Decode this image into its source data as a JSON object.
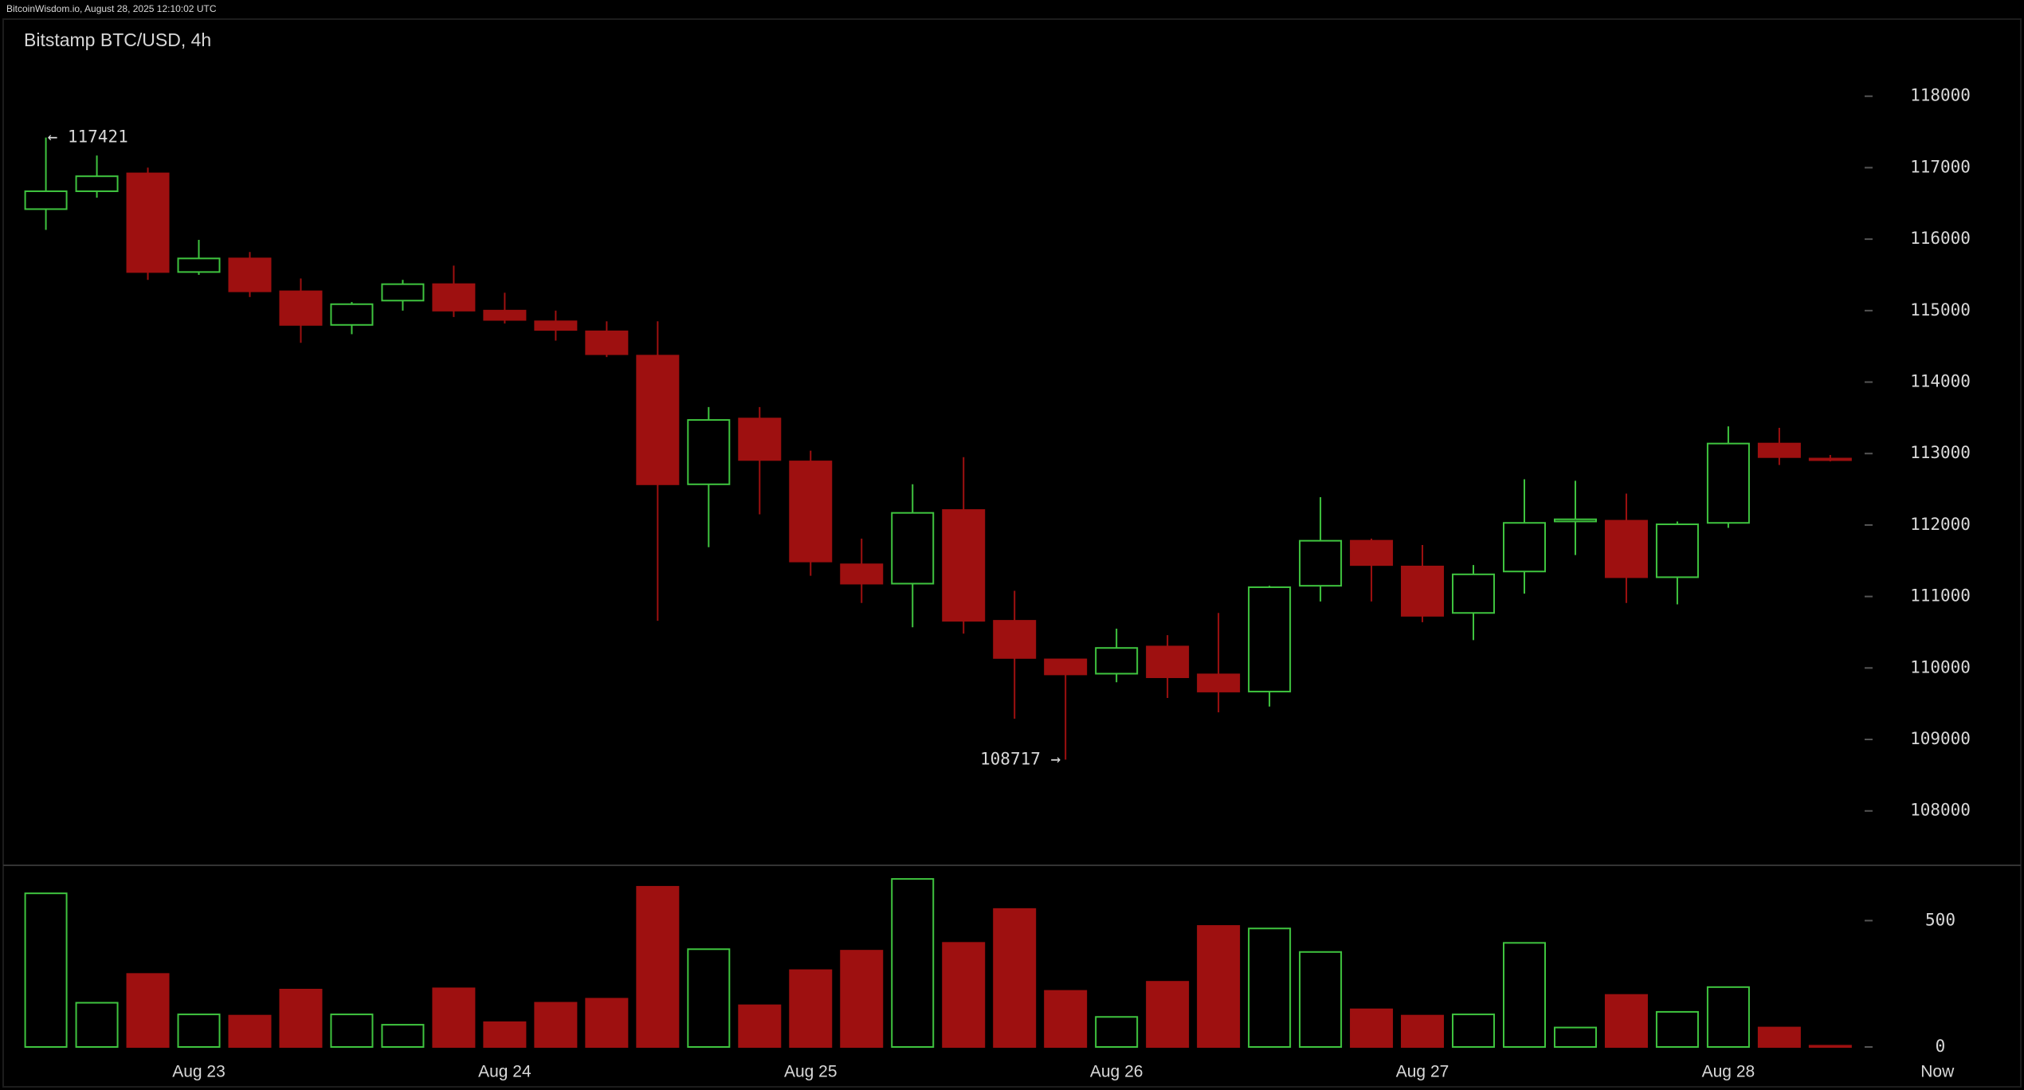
{
  "header": {
    "source": "BitcoinWisdom.io, August 28, 2025 12:10:02 UTC"
  },
  "chart_data": [
    {
      "type": "candlestick",
      "title": "Bitstamp BTC/USD, 4h",
      "up_color": "#3fc43f",
      "down_color": "#9e1010",
      "series": {
        "open": [
          116420,
          116670,
          116920,
          115540,
          115730,
          115270,
          114800,
          115140,
          115370,
          115000,
          114850,
          114710,
          114370,
          112570,
          113490,
          112890,
          111450,
          111180,
          112210,
          110660,
          110120,
          109920,
          110300,
          109910,
          109670,
          111150,
          111780,
          111420,
          110770,
          111350,
          112050,
          112060,
          111270,
          112030,
          113140,
          112930
        ],
        "high": [
          117421,
          117170,
          117000,
          115990,
          115820,
          115450,
          115120,
          115430,
          115630,
          115250,
          115000,
          114850,
          114850,
          113650,
          113650,
          113040,
          111810,
          112570,
          112950,
          111080,
          110120,
          110550,
          110460,
          110770,
          111150,
          112390,
          111810,
          111720,
          111440,
          112640,
          112620,
          112440,
          112050,
          113380,
          113360,
          112980
        ],
        "low": [
          116130,
          116580,
          115430,
          115500,
          115190,
          114550,
          114670,
          115000,
          114910,
          114820,
          114580,
          114350,
          110660,
          111690,
          112150,
          111290,
          110910,
          110570,
          110480,
          109290,
          108717,
          109800,
          109580,
          109380,
          109460,
          110930,
          110930,
          110640,
          110390,
          111040,
          111580,
          110910,
          110890,
          111960,
          112840,
          112890
        ],
        "close": [
          116670,
          116880,
          115540,
          115730,
          115270,
          114800,
          115090,
          115370,
          115000,
          114870,
          114730,
          114390,
          112570,
          113470,
          112910,
          111490,
          111180,
          112170,
          110660,
          110140,
          109910,
          110280,
          109870,
          109670,
          111130,
          111780,
          111440,
          110730,
          111310,
          112030,
          112080,
          111270,
          112010,
          113140,
          112950,
          112910
        ]
      },
      "annotations": [
        "← 117421",
        "108717 →"
      ],
      "xlim": [
        -0.9,
        38.8
      ],
      "xticks": [
        {
          "value": 3,
          "label": "Aug 23"
        },
        {
          "value": 9,
          "label": "Aug 24"
        },
        {
          "value": 15,
          "label": "Aug 25"
        },
        {
          "value": 21,
          "label": "Aug 26"
        },
        {
          "value": 27,
          "label": "Aug 27"
        },
        {
          "value": 33,
          "label": "Aug 28"
        },
        {
          "value": 37.1,
          "label": "Now"
        }
      ],
      "ylim": [
        107250,
        118900
      ],
      "yticks": [
        108000,
        109000,
        110000,
        111000,
        112000,
        113000,
        114000,
        115000,
        116000,
        117000,
        118000
      ]
    },
    {
      "type": "bar",
      "values": [
        608,
        175,
        289,
        129,
        124,
        227,
        129,
        88,
        232,
        98,
        175,
        191,
        634,
        387,
        165,
        304,
        381,
        665,
        412,
        546,
        222,
        119,
        258,
        479,
        469,
        376,
        149,
        124,
        129,
        412,
        77,
        206,
        139,
        237,
        77,
        5
      ],
      "ylim": [
        0,
        700
      ],
      "yticks": [
        0,
        500
      ]
    }
  ]
}
